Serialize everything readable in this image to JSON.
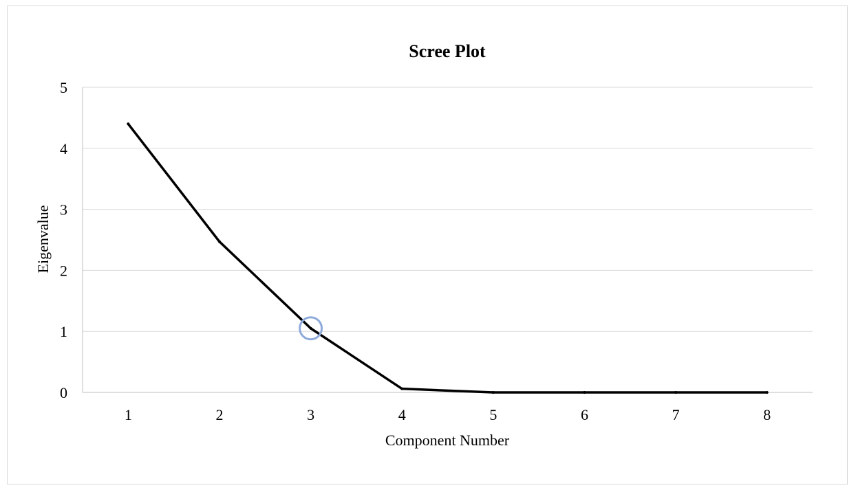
{
  "chart_data": {
    "type": "line",
    "title": "Scree Plot",
    "xlabel": "Component Number",
    "ylabel": "Eigenvalue",
    "x": [
      1,
      2,
      3,
      4,
      5,
      6,
      7,
      8
    ],
    "series": [
      {
        "values": [
          4.4,
          2.47,
          1.05,
          0.06,
          0.0,
          0.0,
          0.0,
          0.0
        ],
        "color": "#000000"
      }
    ],
    "xticks": [
      "1",
      "2",
      "3",
      "4",
      "5",
      "6",
      "7",
      "8"
    ],
    "yticks": [
      "0",
      "1",
      "2",
      "3",
      "4",
      "5"
    ],
    "ylim": [
      0,
      5
    ],
    "grid": "horizontal",
    "legend": "none",
    "highlight": {
      "x": 3,
      "y": 1.05,
      "shape": "circle",
      "color": "#8eaadb"
    }
  }
}
